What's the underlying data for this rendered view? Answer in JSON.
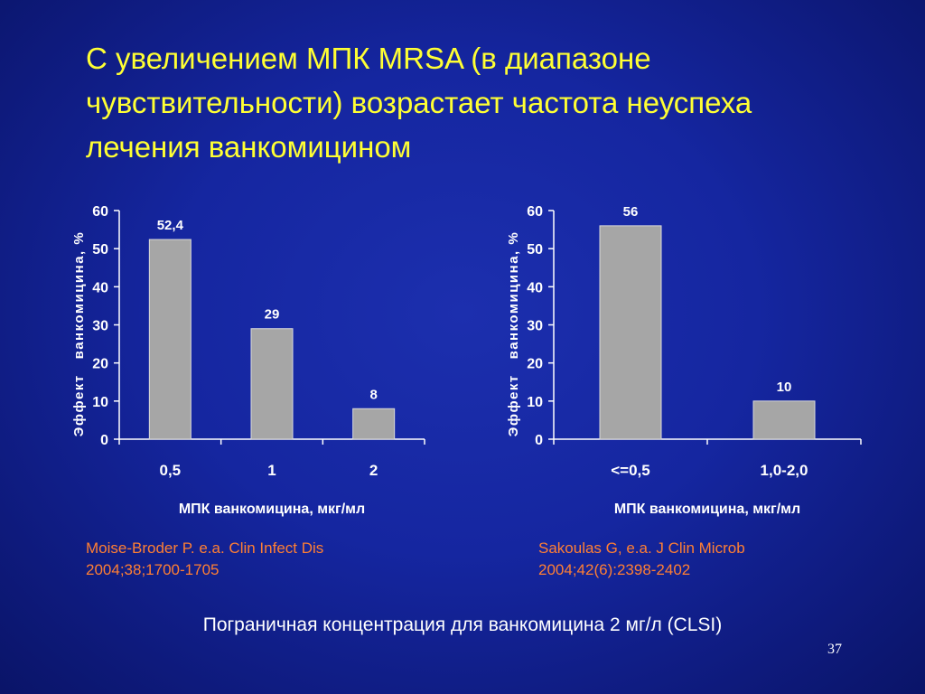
{
  "slide": {
    "title": "С увеличением МПК MRSA (в диапазоне чувствительности) возрастает частота неуспеха лечения ванкомицином",
    "footer": "Пограничная концентрация для ванкомицина 2 мг/л (CLSI)",
    "slide_number": "37",
    "references": [
      "Moise-Broder P. e.a. Clin Infect Dis\n2004;38;1700-1705",
      "Sakoulas G, e.a. J Clin Microb\n2004;42(6):2398-2402"
    ]
  },
  "colors": {
    "background": "#1526a0",
    "title": "#ffff33",
    "reference": "#ff7f33",
    "bar_fill": "#a6a6a6",
    "text": "#ffffff"
  },
  "chart_data": [
    {
      "type": "bar",
      "categories": [
        "0,5",
        "1",
        "2"
      ],
      "values": [
        52.4,
        29,
        8
      ],
      "data_labels": [
        "52,4",
        "29",
        "8"
      ],
      "xlabel": "МПК ванкомицина, мкг/мл",
      "ylabel": "Эффект   ванкомицина, %",
      "ylim": [
        0,
        60
      ],
      "yticks": [
        "0",
        "10",
        "20",
        "30",
        "40",
        "50",
        "60"
      ],
      "grid": false,
      "legend": "none"
    },
    {
      "type": "bar",
      "categories": [
        "<=0,5",
        "1,0-2,0"
      ],
      "values": [
        56,
        10
      ],
      "data_labels": [
        "56",
        "10"
      ],
      "xlabel": "МПК ванкомицина, мкг/мл",
      "ylabel": "Эффект   ванкомицина, %",
      "ylim": [
        0,
        60
      ],
      "yticks": [
        "0",
        "10",
        "20",
        "30",
        "40",
        "50",
        "60"
      ],
      "grid": false,
      "legend": "none"
    }
  ]
}
